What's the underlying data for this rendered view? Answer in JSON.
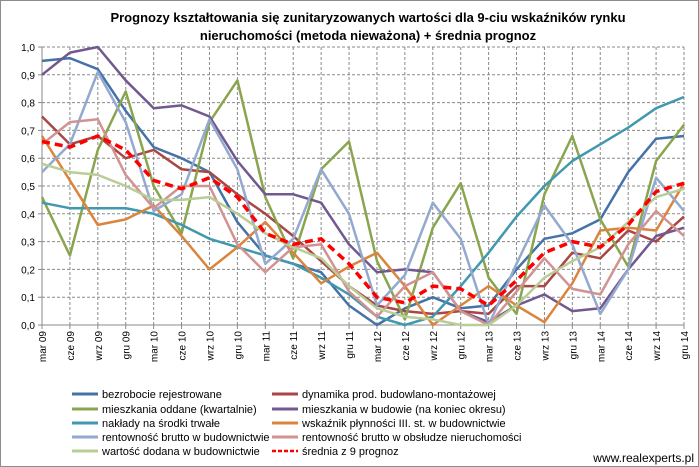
{
  "chart_data": {
    "type": "line",
    "title": [
      "Prognozy kształtowania się zunitaryzowanych wartości dla 9-ciu wskaźników rynku",
      "nieruchomości (metoda nieważona) + średnia prognoz"
    ],
    "xlabel": "",
    "ylabel": "",
    "ylim": [
      0,
      1
    ],
    "yticks": [
      "0,0",
      "0,1",
      "0,2",
      "0,3",
      "0,4",
      "0,5",
      "0,6",
      "0,7",
      "0,8",
      "0,9",
      "1,0"
    ],
    "grid": true,
    "legend_position": "bottom",
    "categories": [
      "mar 09",
      "cze 09",
      "wrz 09",
      "gru 09",
      "mar 10",
      "cze 10",
      "wrz 10",
      "gru 10",
      "mar 11",
      "cze 11",
      "wrz 11",
      "gru 11",
      "mar 12",
      "cze 12",
      "wrz 12",
      "gru 12",
      "mar 13",
      "cze 13",
      "wrz 13",
      "gru 13",
      "mar 14",
      "cze 14",
      "wrz 14",
      "gru 14"
    ],
    "series": [
      {
        "name": "bezrobocie rejestrowane",
        "color": "#4572A7",
        "dashed": false,
        "values": [
          0.95,
          0.96,
          0.92,
          0.77,
          0.64,
          0.6,
          0.55,
          0.37,
          0.25,
          0.22,
          0.19,
          0.07,
          0.0,
          0.06,
          0.1,
          0.06,
          0.07,
          0.2,
          0.31,
          0.33,
          0.38,
          0.55,
          0.67,
          0.68
        ]
      },
      {
        "name": "dynamika prod. budowlano-montażowej",
        "color": "#AA4643",
        "dashed": false,
        "values": [
          0.75,
          0.65,
          0.68,
          0.6,
          0.63,
          0.56,
          0.55,
          0.47,
          0.4,
          0.32,
          0.23,
          0.14,
          0.07,
          0.05,
          0.04,
          0.05,
          0.04,
          0.14,
          0.14,
          0.26,
          0.24,
          0.34,
          0.3,
          0.39
        ]
      },
      {
        "name": "mieszkania oddane (kwartalnie)",
        "color": "#89A54E",
        "dashed": false,
        "values": [
          0.46,
          0.25,
          0.63,
          0.84,
          0.5,
          0.33,
          0.73,
          0.88,
          0.46,
          0.24,
          0.56,
          0.66,
          0.23,
          0.02,
          0.35,
          0.51,
          0.17,
          0.04,
          0.47,
          0.68,
          0.38,
          0.21,
          0.59,
          0.72
        ]
      },
      {
        "name": "mieszkania w budowie (na koniec okresu)",
        "color": "#71588F",
        "dashed": false,
        "values": [
          0.9,
          0.98,
          1.0,
          0.88,
          0.78,
          0.79,
          0.75,
          0.59,
          0.47,
          0.47,
          0.44,
          0.29,
          0.19,
          0.2,
          0.19,
          0.05,
          0.01,
          0.07,
          0.11,
          0.05,
          0.06,
          0.2,
          0.32,
          0.35
        ]
      },
      {
        "name": "nakłady na środki trwałe",
        "color": "#4198AF",
        "dashed": false,
        "values": [
          0.44,
          0.42,
          0.42,
          0.42,
          0.4,
          0.36,
          0.31,
          0.28,
          0.25,
          0.22,
          0.17,
          0.11,
          0.03,
          0.0,
          0.03,
          0.14,
          0.26,
          0.39,
          0.5,
          0.59,
          0.65,
          0.71,
          0.78,
          0.82
        ]
      },
      {
        "name": "wskaźnik płynności III. st. w budownictwie",
        "color": "#DB843D",
        "dashed": false,
        "values": [
          0.68,
          0.52,
          0.36,
          0.38,
          0.43,
          0.32,
          0.2,
          0.28,
          0.37,
          0.26,
          0.15,
          0.21,
          0.26,
          0.14,
          0.0,
          0.07,
          0.14,
          0.07,
          0.01,
          0.15,
          0.34,
          0.35,
          0.34,
          0.51
        ]
      },
      {
        "name": "rentowność brutto w budownictwie",
        "color": "#93A9CF",
        "dashed": false,
        "values": [
          0.55,
          0.65,
          0.91,
          0.73,
          0.41,
          0.47,
          0.74,
          0.56,
          0.22,
          0.31,
          0.56,
          0.4,
          0.07,
          0.18,
          0.44,
          0.31,
          0.0,
          0.22,
          0.43,
          0.29,
          0.04,
          0.2,
          0.53,
          0.41
        ]
      },
      {
        "name": "rentowność brutto w obsłudze nieruchomości",
        "color": "#D19392",
        "dashed": false,
        "values": [
          0.65,
          0.73,
          0.74,
          0.54,
          0.42,
          0.5,
          0.5,
          0.29,
          0.19,
          0.28,
          0.29,
          0.12,
          0.03,
          0.14,
          0.19,
          0.05,
          0.0,
          0.12,
          0.24,
          0.13,
          0.11,
          0.29,
          0.41,
          0.32
        ]
      },
      {
        "name": "wartość dodana w budownictwie",
        "color": "#B9CD96",
        "dashed": false,
        "values": [
          0.58,
          0.55,
          0.54,
          0.5,
          0.45,
          0.45,
          0.46,
          0.4,
          0.33,
          0.28,
          0.24,
          0.14,
          0.06,
          0.03,
          0.02,
          0.0,
          0.0,
          0.07,
          0.17,
          0.23,
          0.28,
          0.37,
          0.46,
          0.49
        ]
      },
      {
        "name": "średnia z 9 prognoz",
        "color": "#FF0000",
        "dashed": true,
        "values": [
          0.66,
          0.64,
          0.68,
          0.63,
          0.52,
          0.49,
          0.53,
          0.46,
          0.33,
          0.29,
          0.31,
          0.22,
          0.1,
          0.08,
          0.14,
          0.13,
          0.07,
          0.16,
          0.26,
          0.3,
          0.28,
          0.36,
          0.48,
          0.51
        ]
      }
    ]
  },
  "watermark": "www.realexperts.pl"
}
